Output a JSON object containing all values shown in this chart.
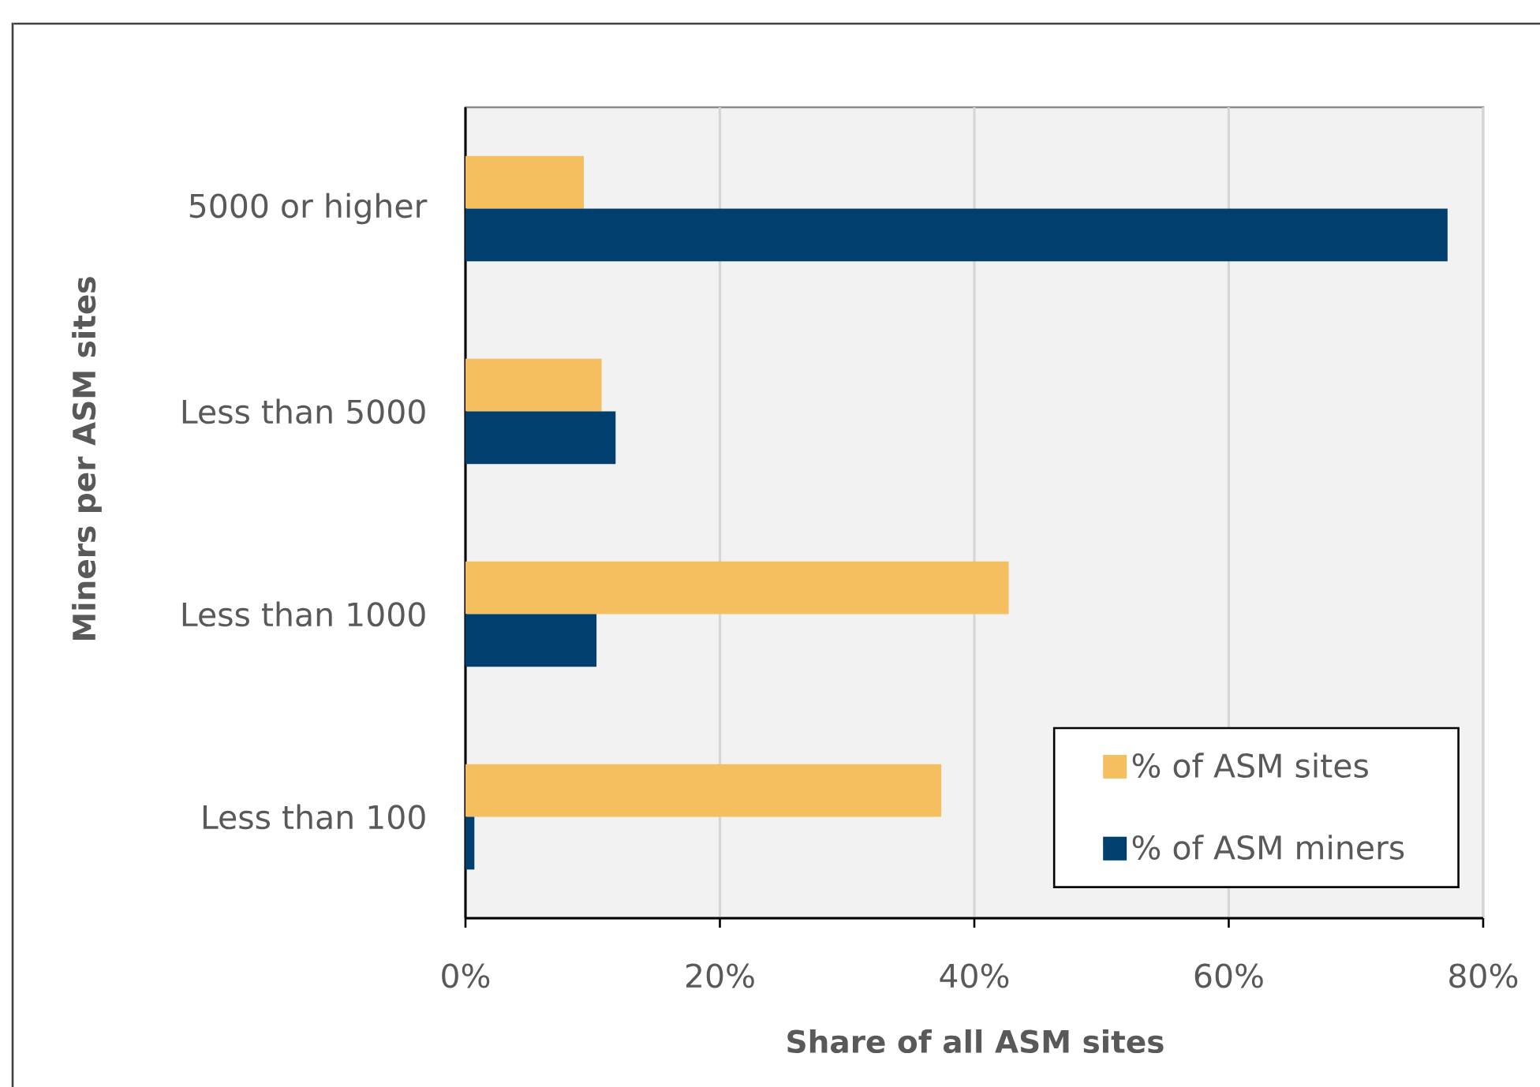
{
  "chart_data": {
    "type": "bar",
    "orientation": "horizontal",
    "categories": [
      "5000 or higher",
      "Less than 5000",
      "Less than 1000",
      "Less than 100"
    ],
    "series": [
      {
        "name": "% of ASM sites",
        "color": "#f5be5e",
        "values": [
          9.3,
          10.7,
          42.7,
          37.4
        ]
      },
      {
        "name": "% of ASM miners",
        "color": "#003f6e",
        "values": [
          77.2,
          11.8,
          10.3,
          0.7
        ]
      }
    ],
    "xlabel": "Share of all ASM sites",
    "ylabel": "Miners per ASM sites",
    "xlim": [
      0,
      80
    ],
    "xticks": [
      {
        "value": 0,
        "label": "0%"
      },
      {
        "value": 20,
        "label": "20%"
      },
      {
        "value": 40,
        "label": "40%"
      },
      {
        "value": 60,
        "label": "60%"
      },
      {
        "value": 80,
        "label": "80%"
      }
    ],
    "grid": "x",
    "legend": "bottom right"
  }
}
